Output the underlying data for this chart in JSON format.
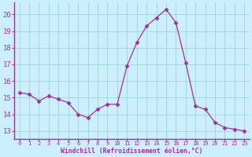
{
  "x": [
    0,
    1,
    2,
    3,
    4,
    5,
    6,
    7,
    8,
    9,
    10,
    11,
    12,
    13,
    14,
    15,
    16,
    17,
    18,
    19,
    20,
    21,
    22,
    23
  ],
  "y": [
    15.3,
    15.2,
    14.8,
    15.1,
    14.9,
    14.7,
    14.0,
    13.8,
    14.3,
    14.6,
    14.6,
    16.9,
    18.3,
    19.3,
    19.8,
    20.3,
    19.5,
    17.1,
    14.5,
    14.3,
    13.5,
    13.2,
    13.1,
    13.0
  ],
  "line_color": "#993399",
  "marker": "D",
  "marker_size": 2.5,
  "bg_color": "#cceeff",
  "grid_color": "#99cccc",
  "tick_color": "#993399",
  "label_color": "#993399",
  "spine_color": "#993399",
  "xlabel": "Windchill (Refroidissement éolien,°C)",
  "ylim": [
    12.5,
    20.7
  ],
  "xlim": [
    -0.5,
    23.5
  ],
  "yticks": [
    13,
    14,
    15,
    16,
    17,
    18,
    19,
    20
  ],
  "xticks": [
    0,
    1,
    2,
    3,
    4,
    5,
    6,
    7,
    8,
    9,
    10,
    11,
    12,
    13,
    14,
    15,
    16,
    17,
    18,
    19,
    20,
    21,
    22,
    23
  ],
  "figsize": [
    3.2,
    2.0
  ],
  "dpi": 100
}
